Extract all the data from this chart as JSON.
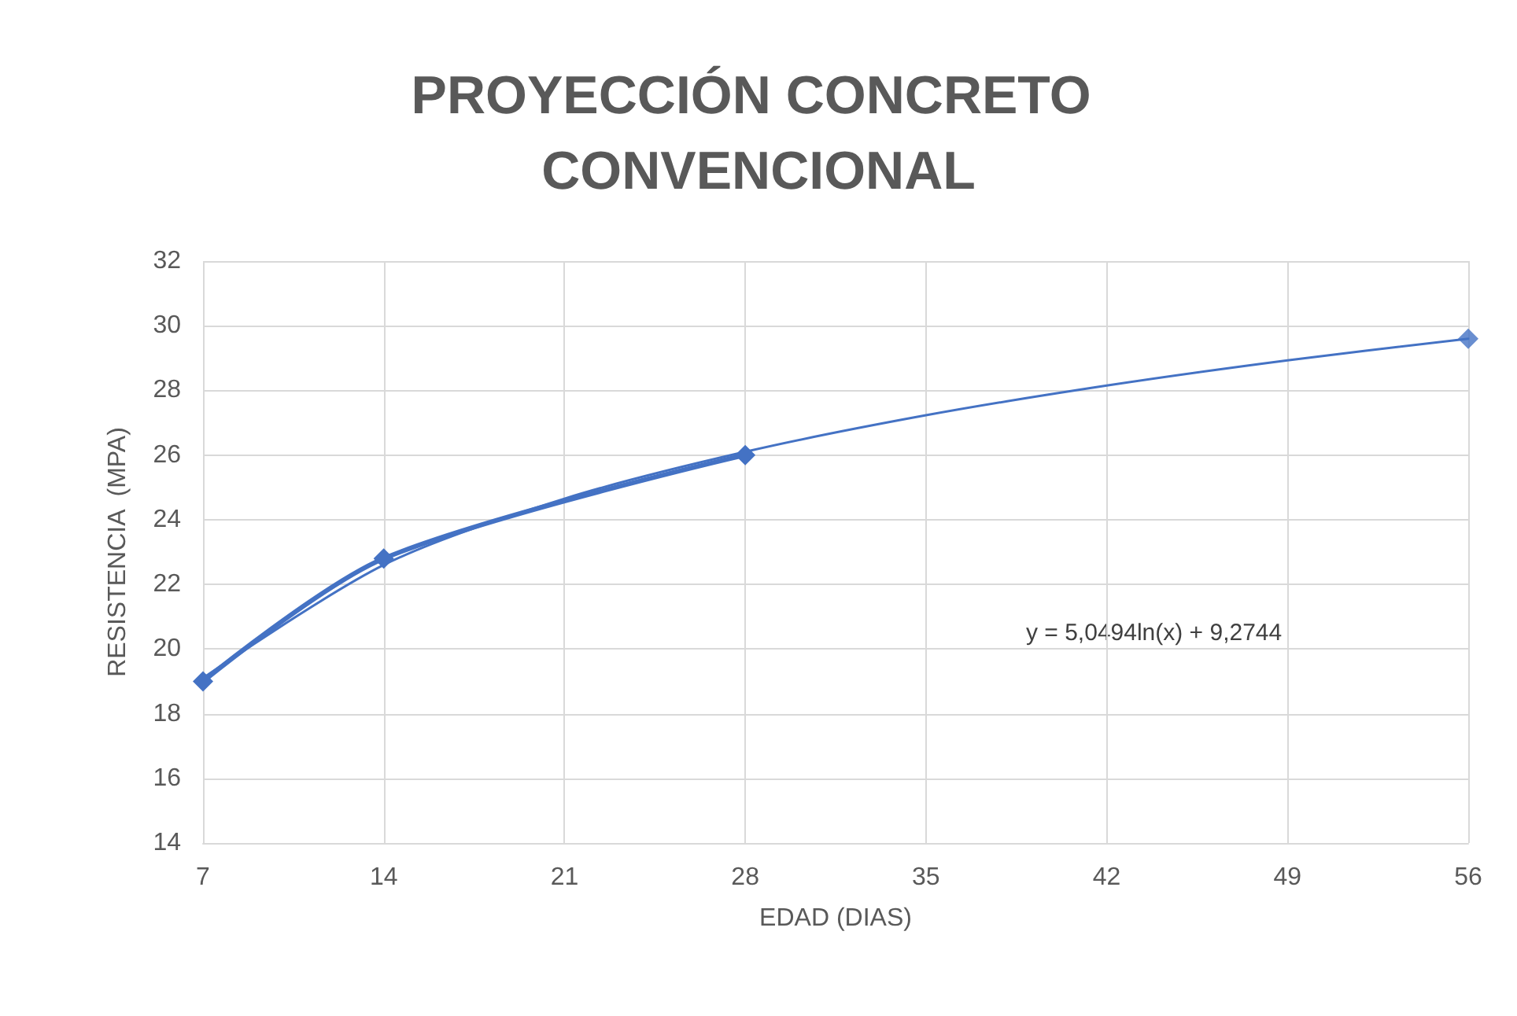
{
  "chart_data": {
    "type": "line",
    "title": "PROYECCIÓN CONCRETO CONVENCIONAL",
    "xlabel": "EDAD (DIAS)",
    "ylabel": "RESISTENCIA  (MPA)",
    "xlim": [
      7,
      56
    ],
    "xticks": [
      7,
      14,
      21,
      28,
      35,
      42,
      49,
      56
    ],
    "ylim": [
      14,
      32
    ],
    "yticks": [
      14,
      16,
      18,
      20,
      22,
      24,
      26,
      28,
      30,
      32
    ],
    "grid": true,
    "marker": "diamond",
    "series": [
      {
        "color": "#4472c4",
        "x": [
          7,
          14,
          28
        ],
        "values": [
          19,
          22.8,
          26
        ]
      },
      {
        "type": "scatter",
        "color": "#4472c4",
        "x": [
          56
        ],
        "values": [
          29.6
        ]
      },
      {
        "color": "#4472c4",
        "marker": "none",
        "x": [
          7,
          14,
          21,
          28,
          35,
          42,
          49,
          56
        ],
        "values": [
          19.1,
          22.6,
          24.65,
          26.1,
          27.23,
          28.15,
          28.93,
          29.6
        ]
      }
    ],
    "annotations": [
      "y = 5,0494ln(x) + 9,2744"
    ]
  }
}
